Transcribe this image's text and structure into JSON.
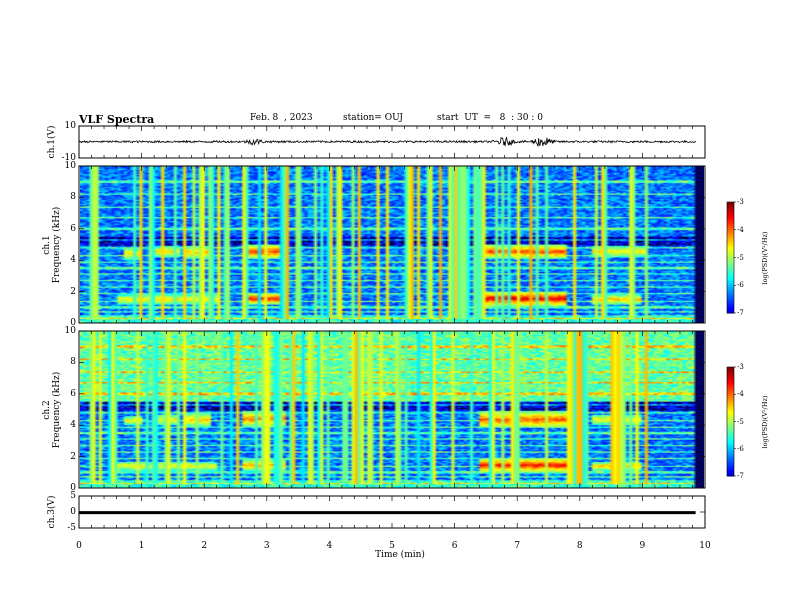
{
  "header": {
    "title": "VLF Spectra",
    "date": "Feb. 8  , 2023",
    "station": "station= OUJ",
    "start": "start  UT  =   8  : 30 : 0"
  },
  "chart_data": [
    {
      "type": "line",
      "title": "",
      "ylabel": "ch.1(V)",
      "xlim": [
        0,
        10
      ],
      "ylim": [
        -10,
        10
      ],
      "yticks": [
        "10",
        "-10"
      ],
      "baseline_amplitude": 0.6,
      "bursts": [
        {
          "x": 2.8,
          "amplitude": 1.5
        },
        {
          "x": 6.8,
          "amplitude": 2.5
        },
        {
          "x": 7.4,
          "amplitude": 3.5
        }
      ]
    },
    {
      "type": "heatmap",
      "ylabel": "ch.1\nFrequency (kHz)",
      "xlim": [
        0,
        10
      ],
      "ylim": [
        0,
        10
      ],
      "yticks": [
        "0",
        "2",
        "4",
        "6",
        "8",
        "10"
      ],
      "colorbar": {
        "label": "log(PSD)(V²/Hz)",
        "range": [
          -7,
          -3
        ],
        "ticks": [
          "-3",
          "-4",
          "-5",
          "-6",
          "-7"
        ]
      },
      "intensity_bands_khz": [
        {
          "x_range": [
            0.7,
            1.0
          ],
          "f_range": [
            4.0,
            4.8
          ],
          "level": -4.5
        },
        {
          "x_range": [
            1.2,
            1.6
          ],
          "f_range": [
            4.2,
            4.9
          ],
          "level": -4.5
        },
        {
          "x_range": [
            1.7,
            2.1
          ],
          "f_range": [
            4.1,
            4.9
          ],
          "level": -4.3
        },
        {
          "x_range": [
            2.6,
            3.3
          ],
          "f_range": [
            4.1,
            5.0
          ],
          "level": -3.8
        },
        {
          "x_range": [
            6.4,
            7.8
          ],
          "f_range": [
            4.1,
            5.0
          ],
          "level": -3.8
        },
        {
          "x_range": [
            8.2,
            9.1
          ],
          "f_range": [
            4.2,
            4.9
          ],
          "level": -4.5
        },
        {
          "x_range": [
            0.6,
            2.2
          ],
          "f_range": [
            1.2,
            1.8
          ],
          "level": -4.5
        },
        {
          "x_range": [
            2.6,
            3.3
          ],
          "f_range": [
            1.2,
            1.9
          ],
          "level": -3.6
        },
        {
          "x_range": [
            6.4,
            7.8
          ],
          "f_range": [
            1.1,
            2.0
          ],
          "level": -3.4
        },
        {
          "x_range": [
            8.2,
            9.0
          ],
          "f_range": [
            1.2,
            1.8
          ],
          "level": -4.3
        }
      ]
    },
    {
      "type": "heatmap",
      "ylabel": "ch.2\nFrequency (kHz)",
      "xlim": [
        0,
        10
      ],
      "ylim": [
        0,
        10
      ],
      "yticks": [
        "0",
        "2",
        "4",
        "6",
        "8",
        "10"
      ],
      "colorbar": {
        "label": "log(PSD)(V²/Hz)",
        "range": [
          -7,
          -3
        ],
        "ticks": [
          "-3",
          "-4",
          "-5",
          "-6",
          "-7"
        ]
      },
      "intensity_bands_khz": [
        {
          "x_range": [
            0.7,
            1.0
          ],
          "f_range": [
            4.0,
            4.6
          ],
          "level": -4.6
        },
        {
          "x_range": [
            1.2,
            1.6
          ],
          "f_range": [
            4.0,
            4.7
          ],
          "level": -4.6
        },
        {
          "x_range": [
            1.7,
            2.1
          ],
          "f_range": [
            3.9,
            4.8
          ],
          "level": -4.4
        },
        {
          "x_range": [
            2.6,
            3.3
          ],
          "f_range": [
            3.9,
            4.9
          ],
          "level": -4.0
        },
        {
          "x_range": [
            6.4,
            7.8
          ],
          "f_range": [
            3.8,
            4.9
          ],
          "level": -3.9
        },
        {
          "x_range": [
            8.2,
            9.0
          ],
          "f_range": [
            4.0,
            4.7
          ],
          "level": -4.6
        },
        {
          "x_range": [
            0.6,
            2.2
          ],
          "f_range": [
            1.1,
            1.7
          ],
          "level": -4.6
        },
        {
          "x_range": [
            2.6,
            3.3
          ],
          "f_range": [
            1.1,
            1.8
          ],
          "level": -4.2
        },
        {
          "x_range": [
            6.4,
            7.8
          ],
          "f_range": [
            1.0,
            1.9
          ],
          "level": -3.6
        },
        {
          "x_range": [
            8.2,
            9.0
          ],
          "f_range": [
            1.1,
            1.7
          ],
          "level": -4.4
        }
      ]
    },
    {
      "type": "line",
      "ylabel": "ch.3(V)",
      "xlim": [
        0,
        10
      ],
      "ylim": [
        -5,
        5
      ],
      "yticks": [
        "5",
        "0",
        "-5"
      ],
      "constant_value": -0.2,
      "xlabel": "Time  (min)",
      "xticks": [
        "0",
        "1",
        "2",
        "3",
        "4",
        "5",
        "6",
        "7",
        "8",
        "9",
        "10"
      ],
      "data_end_x": 9.85
    }
  ]
}
